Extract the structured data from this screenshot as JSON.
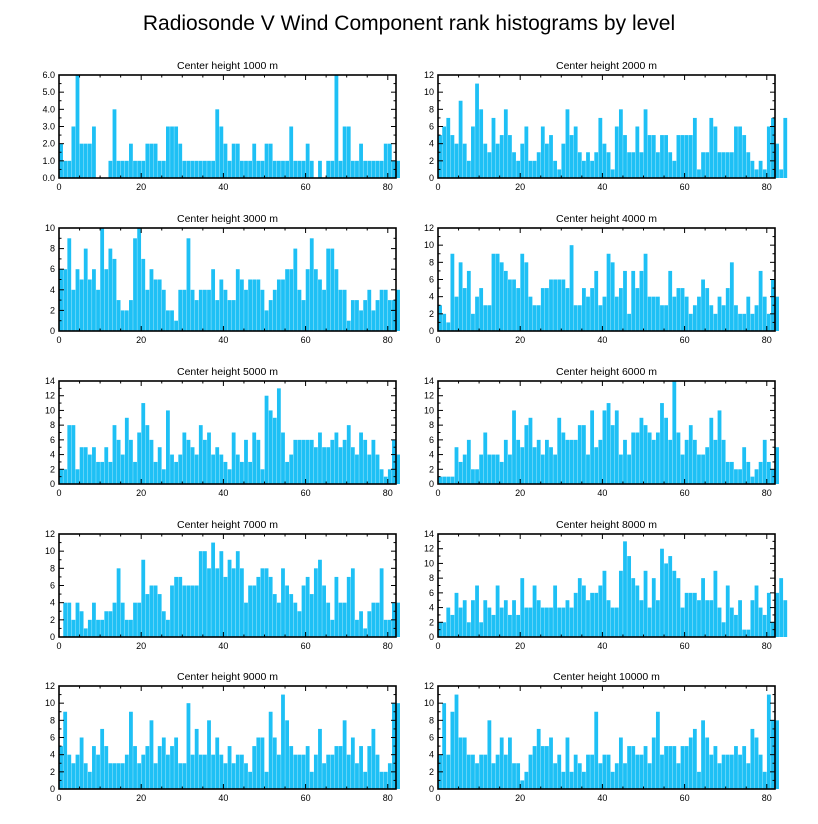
{
  "chart_data": {
    "title": "Radiosonde V Wind Component rank histograms by level",
    "type": "bar",
    "bar_color": "#1ec0f5",
    "panels": [
      {
        "title": "Center height 1000 m",
        "xlim": [
          0,
          82
        ],
        "xticks": [
          0,
          20,
          40,
          60,
          80
        ],
        "ylim": [
          0,
          6
        ],
        "yticks": [
          "0.0",
          "1.0",
          "2.0",
          "3.0",
          "4.0",
          "5.0",
          "6.0"
        ],
        "values": [
          2,
          1,
          1,
          3,
          6,
          2,
          2,
          2,
          3,
          0,
          0,
          0,
          1,
          4,
          1,
          1,
          1,
          2,
          1,
          1,
          1,
          2,
          2,
          2,
          1,
          1,
          3,
          3,
          3,
          2,
          1,
          1,
          1,
          1,
          1,
          1,
          1,
          1,
          4,
          3,
          2,
          1,
          2,
          2,
          1,
          1,
          1,
          2,
          1,
          1,
          2,
          2,
          1,
          1,
          1,
          1,
          3,
          1,
          1,
          1,
          2,
          1,
          0,
          1,
          0,
          1,
          1,
          6,
          1,
          3,
          3,
          1,
          1,
          2,
          1,
          1,
          1,
          1,
          1,
          2,
          2,
          1,
          1
        ]
      },
      {
        "title": "Center height 2000 m",
        "xlim": [
          0,
          82
        ],
        "xticks": [
          0,
          20,
          40,
          60,
          80
        ],
        "ylim": [
          0,
          12
        ],
        "yticks": [
          "0",
          "2",
          "4",
          "6",
          "8",
          "10",
          "12"
        ],
        "values": [
          5,
          6,
          7,
          5,
          4,
          9,
          4,
          2,
          6,
          11,
          8,
          4,
          3,
          7,
          4,
          5,
          8,
          5,
          3,
          2,
          4,
          6,
          2,
          2,
          3,
          6,
          4,
          5,
          2,
          1,
          4,
          8,
          5,
          6,
          3,
          2,
          3,
          2,
          3,
          7,
          4,
          3,
          1,
          6,
          8,
          5,
          3,
          3,
          6,
          3,
          8,
          5,
          5,
          3,
          5,
          5,
          3,
          2,
          5,
          5,
          5,
          5,
          7,
          1,
          3,
          3,
          7,
          6,
          3,
          3,
          3,
          3,
          6,
          6,
          5,
          3,
          2,
          1,
          2,
          1,
          6,
          7,
          4,
          1,
          7
        ]
      },
      {
        "title": "Center height 3000 m",
        "xlim": [
          0,
          82
        ],
        "xticks": [
          0,
          20,
          40,
          60,
          80
        ],
        "ylim": [
          0,
          10
        ],
        "yticks": [
          "0",
          "2",
          "4",
          "6",
          "8",
          "10"
        ],
        "values": [
          6,
          6,
          9,
          4,
          6,
          5,
          8,
          5,
          6,
          4,
          10,
          6,
          8,
          7,
          3,
          2,
          2,
          3,
          9,
          10,
          7,
          4,
          6,
          5,
          5,
          4,
          2,
          2,
          1,
          4,
          4,
          9,
          4,
          3,
          4,
          4,
          4,
          6,
          3,
          5,
          4,
          3,
          3,
          6,
          5,
          4,
          5,
          5,
          5,
          4,
          2,
          3,
          4,
          5,
          5,
          6,
          6,
          8,
          4,
          3,
          6,
          9,
          6,
          5,
          4,
          8,
          8,
          6,
          4,
          4,
          1,
          3,
          3,
          2,
          3,
          4,
          2,
          3,
          4,
          4,
          3,
          3,
          4
        ]
      },
      {
        "title": "Center height 4000 m",
        "xlim": [
          0,
          82
        ],
        "xticks": [
          0,
          20,
          40,
          60,
          80
        ],
        "ylim": [
          0,
          12
        ],
        "yticks": [
          "0",
          "2",
          "4",
          "6",
          "8",
          "10",
          "12"
        ],
        "values": [
          3,
          2,
          1,
          9,
          4,
          8,
          5,
          7,
          2,
          4,
          5,
          3,
          3,
          9,
          9,
          8,
          7,
          6,
          6,
          5,
          9,
          8,
          4,
          3,
          3,
          5,
          5,
          6,
          6,
          6,
          6,
          5,
          10,
          3,
          3,
          5,
          4,
          5,
          7,
          3,
          4,
          9,
          8,
          4,
          5,
          7,
          2,
          7,
          5,
          7,
          9,
          4,
          4,
          4,
          3,
          3,
          7,
          4,
          5,
          5,
          4,
          2,
          3,
          4,
          6,
          5,
          3,
          2,
          4,
          3,
          5,
          8,
          3,
          2,
          2,
          4,
          2,
          3,
          7,
          4,
          2,
          6,
          4
        ]
      },
      {
        "title": "Center height 5000 m",
        "xlim": [
          0,
          82
        ],
        "xticks": [
          0,
          20,
          40,
          60,
          80
        ],
        "ylim": [
          0,
          14
        ],
        "yticks": [
          "0",
          "2",
          "4",
          "6",
          "8",
          "10",
          "12",
          "14"
        ],
        "values": [
          2,
          2,
          8,
          8,
          2,
          5,
          5,
          4,
          5,
          3,
          3,
          5,
          3,
          8,
          6,
          4,
          9,
          6,
          3,
          7,
          11,
          8,
          6,
          3,
          5,
          2,
          10,
          4,
          3,
          4,
          7,
          6,
          5,
          4,
          8,
          6,
          7,
          4,
          5,
          4,
          3,
          2,
          7,
          4,
          3,
          6,
          3,
          7,
          6,
          2,
          12,
          10,
          9,
          13,
          7,
          3,
          4,
          6,
          6,
          6,
          6,
          6,
          5,
          7,
          5,
          5,
          6,
          7,
          5,
          6,
          8,
          5,
          4,
          7,
          6,
          4,
          6,
          4,
          2,
          1,
          2,
          6,
          4
        ]
      },
      {
        "title": "Center height 6000 m",
        "xlim": [
          0,
          82
        ],
        "xticks": [
          0,
          20,
          40,
          60,
          80
        ],
        "ylim": [
          0,
          14
        ],
        "yticks": [
          "0",
          "2",
          "4",
          "6",
          "8",
          "10",
          "12",
          "14"
        ],
        "values": [
          1,
          1,
          1,
          1,
          5,
          3,
          4,
          6,
          2,
          2,
          4,
          7,
          4,
          4,
          4,
          3,
          6,
          4,
          10,
          6,
          5,
          8,
          9,
          5,
          6,
          4,
          6,
          5,
          4,
          9,
          7,
          6,
          6,
          6,
          8,
          8,
          4,
          10,
          5,
          6,
          10,
          11,
          8,
          10,
          4,
          6,
          4,
          7,
          7,
          9,
          8,
          7,
          6,
          7,
          11,
          9,
          6,
          14,
          7,
          4,
          6,
          8,
          6,
          4,
          4,
          5,
          9,
          6,
          10,
          6,
          3,
          3,
          2,
          2,
          5,
          3,
          1,
          2,
          3,
          6,
          3,
          2,
          5
        ]
      },
      {
        "title": "Center height 7000 m",
        "xlim": [
          0,
          82
        ],
        "xticks": [
          0,
          20,
          40,
          60,
          80
        ],
        "ylim": [
          0,
          12
        ],
        "yticks": [
          "0",
          "2",
          "4",
          "6",
          "8",
          "10",
          "12"
        ],
        "values": [
          0,
          4,
          4,
          2,
          4,
          3,
          1,
          2,
          4,
          2,
          2,
          3,
          3,
          4,
          8,
          4,
          2,
          2,
          4,
          4,
          9,
          5,
          6,
          6,
          5,
          3,
          2,
          6,
          7,
          7,
          6,
          6,
          6,
          6,
          10,
          10,
          8,
          11,
          8,
          10,
          7,
          9,
          8,
          10,
          8,
          4,
          6,
          6,
          7,
          8,
          8,
          7,
          5,
          4,
          8,
          6,
          5,
          4,
          3,
          6,
          7,
          5,
          8,
          9,
          6,
          4,
          2,
          7,
          4,
          4,
          7,
          8,
          2,
          3,
          1,
          3,
          4,
          4,
          8,
          2,
          2,
          4,
          4
        ]
      },
      {
        "title": "Center height 8000 m",
        "xlim": [
          0,
          82
        ],
        "xticks": [
          0,
          20,
          40,
          60,
          80
        ],
        "ylim": [
          0,
          14
        ],
        "yticks": [
          "0",
          "2",
          "4",
          "6",
          "8",
          "10",
          "12",
          "14"
        ],
        "values": [
          2,
          2,
          4,
          3,
          6,
          4,
          5,
          2,
          5,
          7,
          2,
          5,
          4,
          3,
          7,
          4,
          5,
          3,
          5,
          3,
          8,
          4,
          4,
          7,
          5,
          4,
          4,
          4,
          7,
          4,
          4,
          5,
          4,
          6,
          8,
          7,
          5,
          6,
          6,
          7,
          9,
          5,
          4,
          4,
          9,
          13,
          11,
          8,
          7,
          5,
          9,
          4,
          8,
          5,
          12,
          10,
          11,
          9,
          8,
          4,
          6,
          6,
          6,
          5,
          8,
          5,
          5,
          9,
          4,
          2,
          7,
          4,
          3,
          5,
          1,
          1,
          5,
          7,
          4,
          3,
          6,
          2,
          6,
          8,
          5
        ]
      },
      {
        "title": "Center height 9000 m",
        "xlim": [
          0,
          82
        ],
        "xticks": [
          0,
          20,
          40,
          60,
          80
        ],
        "ylim": [
          0,
          12
        ],
        "yticks": [
          "0",
          "2",
          "4",
          "6",
          "8",
          "10",
          "12"
        ],
        "values": [
          5,
          9,
          4,
          3,
          4,
          6,
          3,
          2,
          5,
          4,
          7,
          5,
          3,
          3,
          3,
          3,
          4,
          9,
          5,
          3,
          4,
          5,
          8,
          3,
          5,
          6,
          4,
          5,
          6,
          3,
          3,
          10,
          4,
          7,
          4,
          4,
          8,
          4,
          6,
          4,
          3,
          5,
          3,
          4,
          4,
          3,
          2,
          5,
          6,
          6,
          2,
          9,
          6,
          4,
          11,
          8,
          5,
          4,
          4,
          4,
          5,
          2,
          4,
          7,
          3,
          4,
          4,
          5,
          5,
          8,
          4,
          6,
          3,
          5,
          2,
          5,
          7,
          4,
          2,
          2,
          3,
          10,
          10
        ]
      },
      {
        "title": "Center height 10000 m",
        "xlim": [
          0,
          82
        ],
        "xticks": [
          0,
          20,
          40,
          60,
          80
        ],
        "ylim": [
          0,
          12
        ],
        "yticks": [
          "0",
          "2",
          "4",
          "6",
          "8",
          "10",
          "12"
        ],
        "values": [
          4,
          10,
          4,
          9,
          11,
          6,
          6,
          4,
          4,
          3,
          4,
          4,
          8,
          3,
          4,
          6,
          4,
          6,
          3,
          3,
          1,
          2,
          4,
          5,
          7,
          5,
          5,
          6,
          3,
          4,
          2,
          6,
          2,
          4,
          3,
          2,
          4,
          4,
          9,
          3,
          4,
          4,
          2,
          3,
          6,
          3,
          5,
          5,
          4,
          4,
          5,
          3,
          6,
          9,
          4,
          5,
          5,
          5,
          3,
          5,
          5,
          6,
          7,
          2,
          8,
          6,
          4,
          5,
          3,
          4,
          4,
          4,
          5,
          4,
          5,
          3,
          7,
          6,
          4,
          2,
          11,
          8,
          8
        ]
      }
    ]
  }
}
